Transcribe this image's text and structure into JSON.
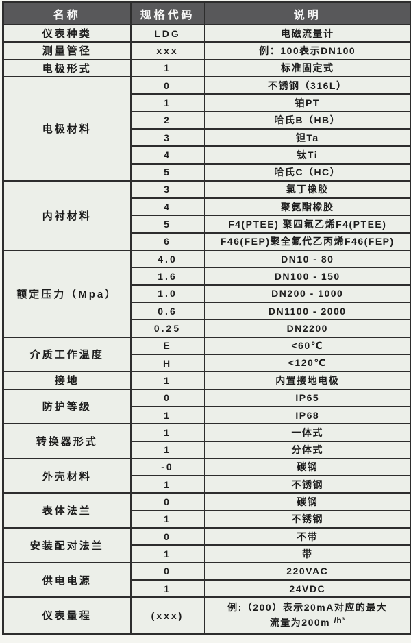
{
  "table": {
    "headers": [
      "名称",
      "规格代码",
      "说明"
    ],
    "groups": [
      {
        "name": "仪表种类",
        "rows": [
          {
            "code": "LDG",
            "desc": "电磁流量计"
          }
        ]
      },
      {
        "name": "测量管径",
        "rows": [
          {
            "code": "xxx",
            "desc": "例：100表示DN100"
          }
        ]
      },
      {
        "name": "电极形式",
        "rows": [
          {
            "code": "1",
            "desc": "标准固定式"
          }
        ]
      },
      {
        "name": "电极材料",
        "rows": [
          {
            "code": "0",
            "desc": "不锈钢（316L）"
          },
          {
            "code": "1",
            "desc": "铂PT"
          },
          {
            "code": "2",
            "desc": "哈氏B（HB）"
          },
          {
            "code": "3",
            "desc": "钽Ta"
          },
          {
            "code": "4",
            "desc": "钛Ti"
          },
          {
            "code": "5",
            "desc": "哈氏C（HC）"
          }
        ]
      },
      {
        "name": "内衬材料",
        "rows": [
          {
            "code": "3",
            "desc": "氯丁橡胶"
          },
          {
            "code": "4",
            "desc": "聚氨酯橡胶"
          },
          {
            "code": "5",
            "desc": "F4(PTEE) 聚四氟乙烯F4(PTEE)"
          },
          {
            "code": "6",
            "desc": "F46(FEP)聚全氟代乙丙烯F46(FEP)"
          }
        ]
      },
      {
        "name": "额定压力（Mpa）",
        "rows": [
          {
            "code": "4.0",
            "desc": "DN10 - 80"
          },
          {
            "code": "1.6",
            "desc": "DN100 - 150"
          },
          {
            "code": "1.0",
            "desc": "DN200 - 1000"
          },
          {
            "code": "0.6",
            "desc": "DN1100 - 2000"
          },
          {
            "code": "0.25",
            "desc": "DN2200"
          }
        ]
      },
      {
        "name": "介质工作温度",
        "rows": [
          {
            "code": "E",
            "desc": "<60℃"
          },
          {
            "code": "H",
            "desc": "<120℃"
          }
        ]
      },
      {
        "name": "接地",
        "rows": [
          {
            "code": "1",
            "desc": "内置接地电极"
          }
        ]
      },
      {
        "name": "防护等级",
        "rows": [
          {
            "code": "0",
            "desc": "IP65"
          },
          {
            "code": "1",
            "desc": "IP68"
          }
        ]
      },
      {
        "name": "转换器形式",
        "rows": [
          {
            "code": "1",
            "desc": "一体式"
          },
          {
            "code": "1",
            "desc": "分体式"
          }
        ]
      },
      {
        "name": "外壳材料",
        "rows": [
          {
            "code": "-0",
            "desc": "碳钢"
          },
          {
            "code": "1",
            "desc": "不锈钢"
          }
        ]
      },
      {
        "name": "表体法兰",
        "rows": [
          {
            "code": "0",
            "desc": "碳钢"
          },
          {
            "code": "1",
            "desc": "不锈钢"
          }
        ]
      },
      {
        "name": "安装配对法兰",
        "rows": [
          {
            "code": "0",
            "desc": "不带"
          },
          {
            "code": "1",
            "desc": "带"
          }
        ]
      },
      {
        "name": "供电电源",
        "rows": [
          {
            "code": "0",
            "desc": "220VAC"
          },
          {
            "code": "1",
            "desc": "24VDC"
          }
        ]
      },
      {
        "name": "仪表量程",
        "tall": true,
        "rows": [
          {
            "code": "(xxx)",
            "desc_lines": [
              {
                "text": "例:（200）表示20mA对应的最大"
              },
              {
                "text": "流量为200m ",
                "sup": "/h³"
              }
            ]
          }
        ]
      }
    ]
  },
  "colors": {
    "header_bg": "#58585a",
    "header_text": "#f7f7f7",
    "cell_bg": "#ecefe9",
    "border": "#2d2d2d",
    "text": "#1c1c1c"
  }
}
